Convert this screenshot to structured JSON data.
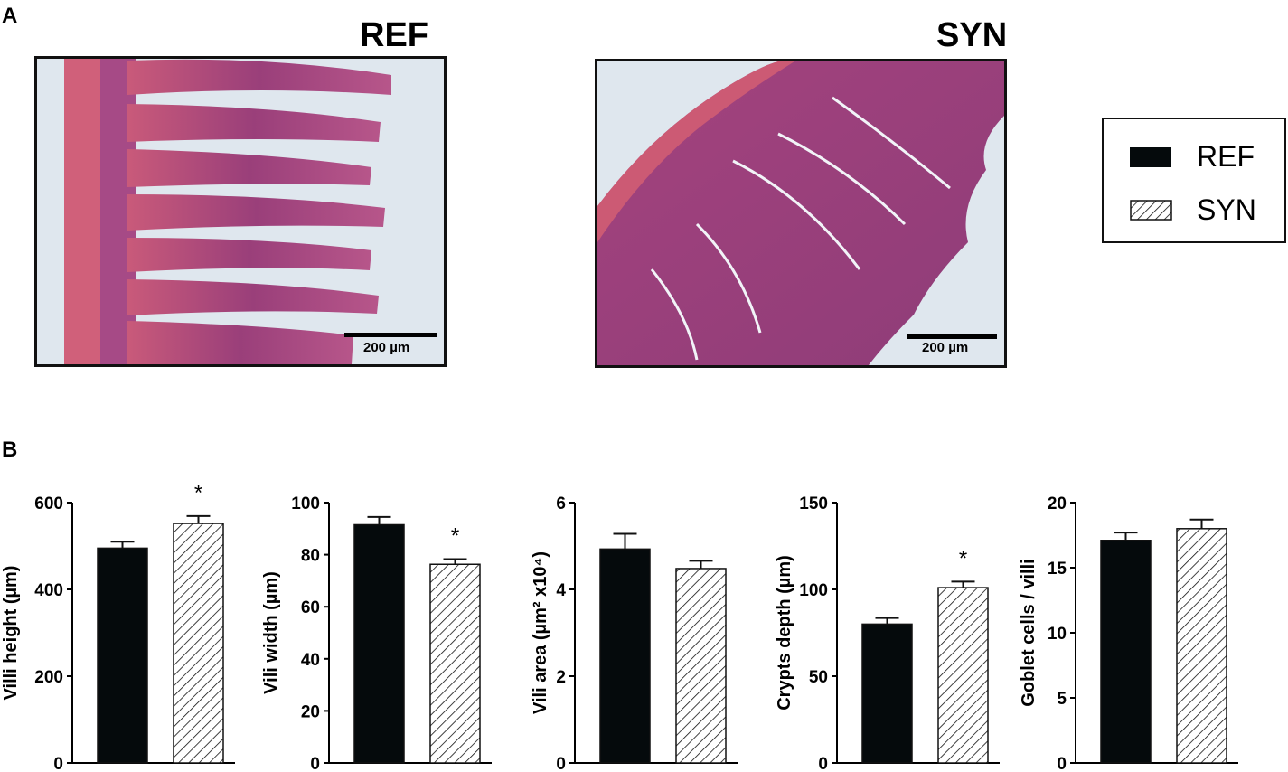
{
  "panel_a": {
    "letter": "A",
    "images": [
      {
        "title": "REF",
        "scale_bar_label": "200 µm"
      },
      {
        "title": "SYN",
        "scale_bar_label": "200 µm"
      }
    ]
  },
  "panel_b": {
    "letter": "B"
  },
  "legend": {
    "entries": [
      {
        "label": "REF",
        "fill": "solid",
        "color": "#050a0c"
      },
      {
        "label": "SYN",
        "fill": "hatched",
        "color": "#050a0c"
      }
    ]
  },
  "chart_data": [
    {
      "type": "bar",
      "categories": [
        "REF",
        "SYN"
      ],
      "values": [
        495,
        552
      ],
      "errors": [
        15,
        17
      ],
      "significance": [
        "",
        "*"
      ],
      "ylabel": "Villi height (µm)",
      "ylim": [
        0,
        600
      ],
      "yticks": [
        0,
        200,
        400,
        600
      ]
    },
    {
      "type": "bar",
      "categories": [
        "REF",
        "SYN"
      ],
      "values": [
        91.5,
        76.3
      ],
      "errors": [
        3.0,
        2.0
      ],
      "significance": [
        "",
        "*"
      ],
      "ylabel": "Vili width (µm)",
      "ylim": [
        0,
        100
      ],
      "yticks": [
        0,
        20,
        40,
        60,
        80,
        100
      ]
    },
    {
      "type": "bar",
      "categories": [
        "REF",
        "SYN"
      ],
      "values": [
        4.93,
        4.48
      ],
      "errors": [
        0.35,
        0.18
      ],
      "significance": [
        "",
        ""
      ],
      "ylabel": "Vili area (µm² x10⁴)",
      "ylim": [
        0,
        6
      ],
      "yticks": [
        0,
        2,
        4,
        6
      ]
    },
    {
      "type": "bar",
      "categories": [
        "REF",
        "SYN"
      ],
      "values": [
        80,
        101
      ],
      "errors": [
        3.5,
        3.5
      ],
      "significance": [
        "",
        "*"
      ],
      "ylabel": "Crypts depth (µm)",
      "ylim": [
        0,
        150
      ],
      "yticks": [
        0,
        50,
        100,
        150
      ]
    },
    {
      "type": "bar",
      "categories": [
        "REF",
        "SYN"
      ],
      "values": [
        17.1,
        18.0
      ],
      "errors": [
        0.6,
        0.7
      ],
      "significance": [
        "",
        ""
      ],
      "ylabel": "Goblet cells / villi",
      "ylim": [
        0,
        20
      ],
      "yticks": [
        0,
        5,
        10,
        15,
        20
      ]
    }
  ]
}
